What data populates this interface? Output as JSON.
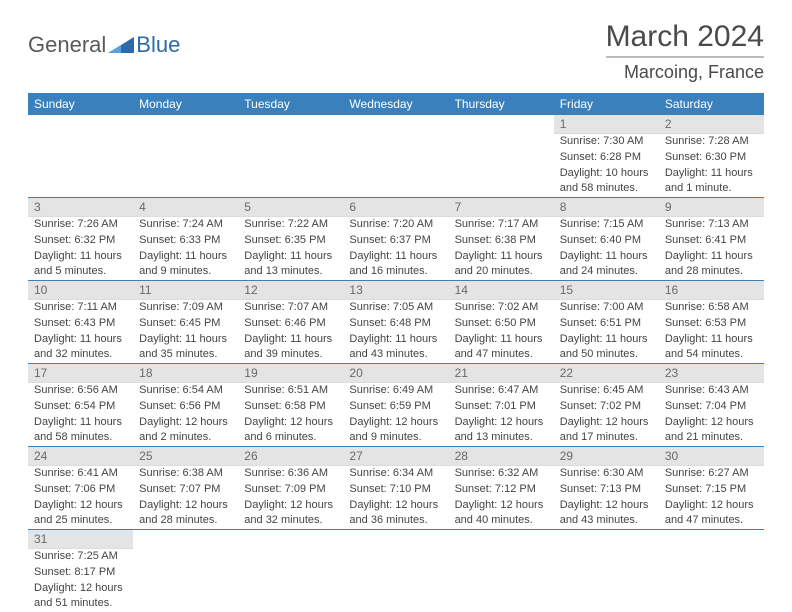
{
  "logo": {
    "text1": "General",
    "text2": "Blue"
  },
  "title": "March 2024",
  "location": "Marcoing, France",
  "colors": {
    "header_bg": "#3a80bd",
    "daynum_bg": "#e4e4e4",
    "row_border": "#3a80bd",
    "text": "#4a4a4a"
  },
  "weekdays": [
    "Sunday",
    "Monday",
    "Tuesday",
    "Wednesday",
    "Thursday",
    "Friday",
    "Saturday"
  ],
  "weeks": [
    [
      null,
      null,
      null,
      null,
      null,
      {
        "num": "1",
        "sunrise": "Sunrise: 7:30 AM",
        "sunset": "Sunset: 6:28 PM",
        "day1": "Daylight: 10 hours",
        "day2": "and 58 minutes."
      },
      {
        "num": "2",
        "sunrise": "Sunrise: 7:28 AM",
        "sunset": "Sunset: 6:30 PM",
        "day1": "Daylight: 11 hours",
        "day2": "and 1 minute."
      }
    ],
    [
      {
        "num": "3",
        "sunrise": "Sunrise: 7:26 AM",
        "sunset": "Sunset: 6:32 PM",
        "day1": "Daylight: 11 hours",
        "day2": "and 5 minutes."
      },
      {
        "num": "4",
        "sunrise": "Sunrise: 7:24 AM",
        "sunset": "Sunset: 6:33 PM",
        "day1": "Daylight: 11 hours",
        "day2": "and 9 minutes."
      },
      {
        "num": "5",
        "sunrise": "Sunrise: 7:22 AM",
        "sunset": "Sunset: 6:35 PM",
        "day1": "Daylight: 11 hours",
        "day2": "and 13 minutes."
      },
      {
        "num": "6",
        "sunrise": "Sunrise: 7:20 AM",
        "sunset": "Sunset: 6:37 PM",
        "day1": "Daylight: 11 hours",
        "day2": "and 16 minutes."
      },
      {
        "num": "7",
        "sunrise": "Sunrise: 7:17 AM",
        "sunset": "Sunset: 6:38 PM",
        "day1": "Daylight: 11 hours",
        "day2": "and 20 minutes."
      },
      {
        "num": "8",
        "sunrise": "Sunrise: 7:15 AM",
        "sunset": "Sunset: 6:40 PM",
        "day1": "Daylight: 11 hours",
        "day2": "and 24 minutes."
      },
      {
        "num": "9",
        "sunrise": "Sunrise: 7:13 AM",
        "sunset": "Sunset: 6:41 PM",
        "day1": "Daylight: 11 hours",
        "day2": "and 28 minutes."
      }
    ],
    [
      {
        "num": "10",
        "sunrise": "Sunrise: 7:11 AM",
        "sunset": "Sunset: 6:43 PM",
        "day1": "Daylight: 11 hours",
        "day2": "and 32 minutes."
      },
      {
        "num": "11",
        "sunrise": "Sunrise: 7:09 AM",
        "sunset": "Sunset: 6:45 PM",
        "day1": "Daylight: 11 hours",
        "day2": "and 35 minutes."
      },
      {
        "num": "12",
        "sunrise": "Sunrise: 7:07 AM",
        "sunset": "Sunset: 6:46 PM",
        "day1": "Daylight: 11 hours",
        "day2": "and 39 minutes."
      },
      {
        "num": "13",
        "sunrise": "Sunrise: 7:05 AM",
        "sunset": "Sunset: 6:48 PM",
        "day1": "Daylight: 11 hours",
        "day2": "and 43 minutes."
      },
      {
        "num": "14",
        "sunrise": "Sunrise: 7:02 AM",
        "sunset": "Sunset: 6:50 PM",
        "day1": "Daylight: 11 hours",
        "day2": "and 47 minutes."
      },
      {
        "num": "15",
        "sunrise": "Sunrise: 7:00 AM",
        "sunset": "Sunset: 6:51 PM",
        "day1": "Daylight: 11 hours",
        "day2": "and 50 minutes."
      },
      {
        "num": "16",
        "sunrise": "Sunrise: 6:58 AM",
        "sunset": "Sunset: 6:53 PM",
        "day1": "Daylight: 11 hours",
        "day2": "and 54 minutes."
      }
    ],
    [
      {
        "num": "17",
        "sunrise": "Sunrise: 6:56 AM",
        "sunset": "Sunset: 6:54 PM",
        "day1": "Daylight: 11 hours",
        "day2": "and 58 minutes."
      },
      {
        "num": "18",
        "sunrise": "Sunrise: 6:54 AM",
        "sunset": "Sunset: 6:56 PM",
        "day1": "Daylight: 12 hours",
        "day2": "and 2 minutes."
      },
      {
        "num": "19",
        "sunrise": "Sunrise: 6:51 AM",
        "sunset": "Sunset: 6:58 PM",
        "day1": "Daylight: 12 hours",
        "day2": "and 6 minutes."
      },
      {
        "num": "20",
        "sunrise": "Sunrise: 6:49 AM",
        "sunset": "Sunset: 6:59 PM",
        "day1": "Daylight: 12 hours",
        "day2": "and 9 minutes."
      },
      {
        "num": "21",
        "sunrise": "Sunrise: 6:47 AM",
        "sunset": "Sunset: 7:01 PM",
        "day1": "Daylight: 12 hours",
        "day2": "and 13 minutes."
      },
      {
        "num": "22",
        "sunrise": "Sunrise: 6:45 AM",
        "sunset": "Sunset: 7:02 PM",
        "day1": "Daylight: 12 hours",
        "day2": "and 17 minutes."
      },
      {
        "num": "23",
        "sunrise": "Sunrise: 6:43 AM",
        "sunset": "Sunset: 7:04 PM",
        "day1": "Daylight: 12 hours",
        "day2": "and 21 minutes."
      }
    ],
    [
      {
        "num": "24",
        "sunrise": "Sunrise: 6:41 AM",
        "sunset": "Sunset: 7:06 PM",
        "day1": "Daylight: 12 hours",
        "day2": "and 25 minutes."
      },
      {
        "num": "25",
        "sunrise": "Sunrise: 6:38 AM",
        "sunset": "Sunset: 7:07 PM",
        "day1": "Daylight: 12 hours",
        "day2": "and 28 minutes."
      },
      {
        "num": "26",
        "sunrise": "Sunrise: 6:36 AM",
        "sunset": "Sunset: 7:09 PM",
        "day1": "Daylight: 12 hours",
        "day2": "and 32 minutes."
      },
      {
        "num": "27",
        "sunrise": "Sunrise: 6:34 AM",
        "sunset": "Sunset: 7:10 PM",
        "day1": "Daylight: 12 hours",
        "day2": "and 36 minutes."
      },
      {
        "num": "28",
        "sunrise": "Sunrise: 6:32 AM",
        "sunset": "Sunset: 7:12 PM",
        "day1": "Daylight: 12 hours",
        "day2": "and 40 minutes."
      },
      {
        "num": "29",
        "sunrise": "Sunrise: 6:30 AM",
        "sunset": "Sunset: 7:13 PM",
        "day1": "Daylight: 12 hours",
        "day2": "and 43 minutes."
      },
      {
        "num": "30",
        "sunrise": "Sunrise: 6:27 AM",
        "sunset": "Sunset: 7:15 PM",
        "day1": "Daylight: 12 hours",
        "day2": "and 47 minutes."
      }
    ],
    [
      {
        "num": "31",
        "sunrise": "Sunrise: 7:25 AM",
        "sunset": "Sunset: 8:17 PM",
        "day1": "Daylight: 12 hours",
        "day2": "and 51 minutes."
      },
      null,
      null,
      null,
      null,
      null,
      null
    ]
  ]
}
